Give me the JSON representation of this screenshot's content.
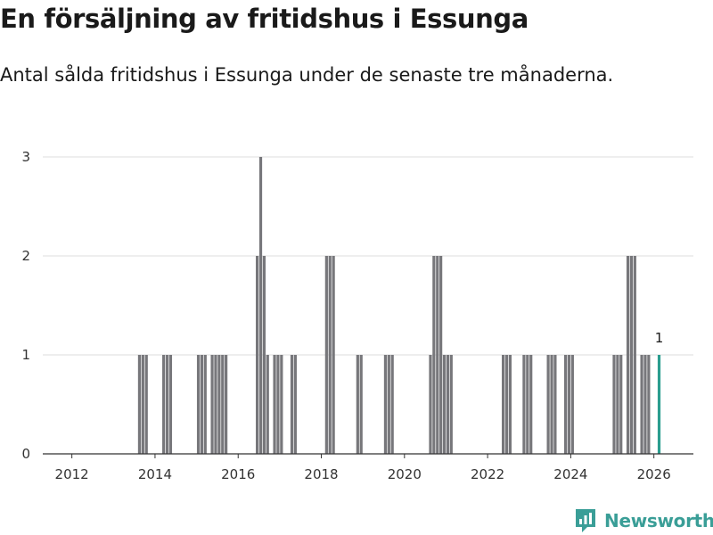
{
  "header": {
    "title": "En försäljning av fritidshus i Essunga",
    "subtitle": "Antal sålda fritidshus i Essunga under de senaste tre månaderna."
  },
  "brand": {
    "name": "Newsworthy",
    "icon": "newsworthy-logo-icon",
    "color": "#3a9e97"
  },
  "chart_data": {
    "type": "bar",
    "x_unit": "year (decimal, monthly bars)",
    "x_ticks": [
      2012,
      2014,
      2016,
      2018,
      2020,
      2022,
      2024,
      2026
    ],
    "y_ticks": [
      0,
      1,
      2,
      3
    ],
    "xlim": [
      2011.3,
      2026.95
    ],
    "ylim": [
      0,
      3
    ],
    "grid": true,
    "bar_color": "#77777b",
    "highlight_color": "#2a9d8f",
    "annotations": [
      {
        "x": 2026.125,
        "text": "1"
      }
    ],
    "x": [
      2013.625,
      2013.708,
      2013.792,
      2014.208,
      2014.292,
      2014.375,
      2015.042,
      2015.125,
      2015.208,
      2015.375,
      2015.458,
      2015.542,
      2015.625,
      2015.708,
      2016.458,
      2016.542,
      2016.625,
      2016.708,
      2016.875,
      2016.958,
      2017.042,
      2017.292,
      2017.375,
      2018.125,
      2018.208,
      2018.292,
      2018.875,
      2018.958,
      2019.542,
      2019.625,
      2019.708,
      2020.625,
      2020.708,
      2020.792,
      2020.875,
      2020.958,
      2021.042,
      2021.125,
      2022.375,
      2022.458,
      2022.542,
      2022.875,
      2022.958,
      2023.042,
      2023.458,
      2023.542,
      2023.625,
      2023.875,
      2023.958,
      2024.042,
      2025.042,
      2025.125,
      2025.208,
      2025.375,
      2025.458,
      2025.542,
      2025.708,
      2025.792,
      2025.875,
      2026.125
    ],
    "values": [
      1,
      1,
      1,
      1,
      1,
      1,
      1,
      1,
      1,
      1,
      1,
      1,
      1,
      1,
      2,
      3,
      2,
      1,
      1,
      1,
      1,
      1,
      1,
      2,
      2,
      2,
      1,
      1,
      1,
      1,
      1,
      1,
      2,
      2,
      2,
      1,
      1,
      1,
      1,
      1,
      1,
      1,
      1,
      1,
      1,
      1,
      1,
      1,
      1,
      1,
      1,
      1,
      1,
      2,
      2,
      2,
      1,
      1,
      1,
      1
    ]
  }
}
